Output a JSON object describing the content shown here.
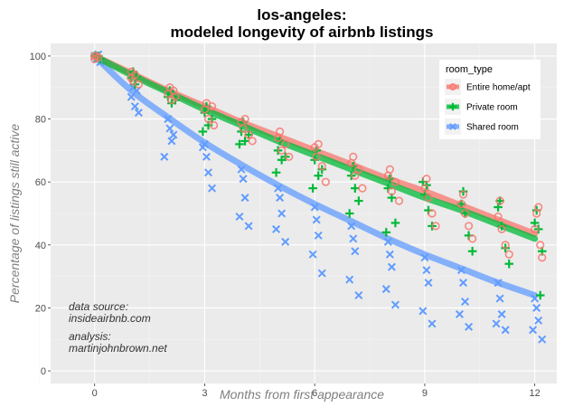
{
  "chart_data": {
    "type": "scatter",
    "title_line1": "los-angeles:",
    "title_line2": "modeled longevity of airbnb listings",
    "xlabel": "Months from first appearance",
    "ylabel": "Percentage of listings still active",
    "xlim": [
      -1.2,
      12.6
    ],
    "ylim": [
      -4,
      104
    ],
    "x_ticks": [
      0,
      3,
      6,
      9,
      12
    ],
    "y_ticks": [
      0,
      20,
      40,
      60,
      80,
      100
    ],
    "grid": true,
    "legend_position": "top-right",
    "legend_title": "room_type",
    "annotations": [
      {
        "line1": "data source:",
        "line2": "insideairbnb.com"
      },
      {
        "line1": "analysis:",
        "line2": "martinjohnbrown.net"
      }
    ],
    "series": [
      {
        "name": "Entire home/apt",
        "color": "#F8766D",
        "marker": "circle",
        "curve": {
          "x": [
            0,
            1,
            2,
            3,
            4,
            5,
            6,
            7,
            8,
            9,
            10,
            11,
            12
          ],
          "y": [
            100,
            94.5,
            89,
            84,
            79,
            74.5,
            70,
            65.5,
            61,
            57,
            52.5,
            48,
            43.5
          ]
        },
        "points": [
          [
            0,
            100
          ],
          [
            0,
            99
          ],
          [
            0.05,
            100
          ],
          [
            0.1,
            99.5
          ],
          [
            1,
            93
          ],
          [
            1,
            95
          ],
          [
            1.05,
            92
          ],
          [
            1.1,
            94
          ],
          [
            1.2,
            91
          ],
          [
            2,
            88
          ],
          [
            2.05,
            90
          ],
          [
            2.1,
            86
          ],
          [
            2.15,
            89
          ],
          [
            2.2,
            87
          ],
          [
            3,
            83
          ],
          [
            3.05,
            85
          ],
          [
            3.1,
            80
          ],
          [
            3.2,
            84
          ],
          [
            3.25,
            78
          ],
          [
            4,
            79
          ],
          [
            4.05,
            77
          ],
          [
            4.1,
            80
          ],
          [
            4.2,
            75
          ],
          [
            4.3,
            73
          ],
          [
            5,
            74
          ],
          [
            5.05,
            76
          ],
          [
            5.1,
            70
          ],
          [
            5.2,
            72
          ],
          [
            5.3,
            68
          ],
          [
            6,
            71
          ],
          [
            6.05,
            68
          ],
          [
            6.1,
            72
          ],
          [
            6.2,
            65
          ],
          [
            6.3,
            60
          ],
          [
            7,
            66
          ],
          [
            7.05,
            68
          ],
          [
            7.1,
            62
          ],
          [
            7.2,
            64
          ],
          [
            7.3,
            58
          ],
          [
            8,
            62
          ],
          [
            8.05,
            64
          ],
          [
            8.1,
            57
          ],
          [
            8.2,
            60
          ],
          [
            8.3,
            54
          ],
          [
            9,
            58
          ],
          [
            9.05,
            61
          ],
          [
            9.1,
            55
          ],
          [
            9.2,
            50
          ],
          [
            9.3,
            46
          ],
          [
            10,
            53
          ],
          [
            10.05,
            56
          ],
          [
            10.1,
            50
          ],
          [
            10.2,
            46
          ],
          [
            10.3,
            42
          ],
          [
            11,
            49
          ],
          [
            11.05,
            54
          ],
          [
            11.1,
            45
          ],
          [
            11.2,
            40
          ],
          [
            11.3,
            37
          ],
          [
            12,
            45
          ],
          [
            12.05,
            50
          ],
          [
            12.1,
            52
          ],
          [
            12.15,
            40
          ],
          [
            12.2,
            36
          ]
        ]
      },
      {
        "name": "Private room",
        "color": "#00BA38",
        "marker": "plus",
        "curve": {
          "x": [
            0,
            1,
            2,
            3,
            4,
            5,
            6,
            7,
            8,
            9,
            10,
            11,
            12
          ],
          "y": [
            100,
            94,
            88.5,
            83,
            78,
            73,
            68.5,
            64,
            59.5,
            55,
            51,
            46.5,
            42
          ]
        },
        "points": [
          [
            0,
            100
          ],
          [
            0.05,
            99.5
          ],
          [
            0.1,
            100
          ],
          [
            0.15,
            99
          ],
          [
            1,
            93
          ],
          [
            1.05,
            95
          ],
          [
            1.1,
            91
          ],
          [
            1.15,
            93.5
          ],
          [
            2,
            87
          ],
          [
            2.05,
            89
          ],
          [
            2.1,
            85
          ],
          [
            2.2,
            86
          ],
          [
            3,
            82
          ],
          [
            3.05,
            84
          ],
          [
            3.1,
            78
          ],
          [
            3.2,
            80
          ],
          [
            2.95,
            76
          ],
          [
            4,
            76
          ],
          [
            4.05,
            79
          ],
          [
            4.1,
            73
          ],
          [
            4.2,
            75
          ],
          [
            3.95,
            72
          ],
          [
            5,
            70
          ],
          [
            5.05,
            73
          ],
          [
            5.1,
            67
          ],
          [
            5.2,
            68
          ],
          [
            4.95,
            63
          ],
          [
            6,
            67
          ],
          [
            6.05,
            70
          ],
          [
            6.1,
            62
          ],
          [
            6.2,
            64
          ],
          [
            5.95,
            58
          ],
          [
            7,
            62
          ],
          [
            7.05,
            65
          ],
          [
            7.1,
            58
          ],
          [
            7.2,
            54
          ],
          [
            6.95,
            50
          ],
          [
            8,
            58
          ],
          [
            8.05,
            61
          ],
          [
            8.1,
            55
          ],
          [
            8.2,
            47
          ],
          [
            7.95,
            44
          ],
          [
            9,
            56
          ],
          [
            9.05,
            59
          ],
          [
            9.1,
            51
          ],
          [
            9.2,
            46
          ],
          [
            8.95,
            60
          ],
          [
            10,
            53
          ],
          [
            10.05,
            57
          ],
          [
            10.1,
            50
          ],
          [
            10.2,
            43
          ],
          [
            10.3,
            38
          ],
          [
            11,
            52
          ],
          [
            11.05,
            54
          ],
          [
            11.1,
            46
          ],
          [
            11.2,
            39
          ],
          [
            11.3,
            34
          ],
          [
            12,
            47
          ],
          [
            12.05,
            51
          ],
          [
            12.1,
            45
          ],
          [
            12.2,
            38
          ],
          [
            12.15,
            24
          ]
        ]
      },
      {
        "name": "Shared room",
        "color": "#619CFF",
        "marker": "cross",
        "curve": {
          "x": [
            0,
            1,
            2,
            3,
            4,
            5,
            6,
            7,
            8,
            9,
            10,
            11,
            12
          ],
          "y": [
            100,
            89,
            80.5,
            72.5,
            65.5,
            59,
            53,
            47.5,
            42,
            37,
            32.5,
            28,
            24
          ]
        },
        "points": [
          [
            0,
            100
          ],
          [
            0.05,
            99
          ],
          [
            0.1,
            100.5
          ],
          [
            0.15,
            98
          ],
          [
            1,
            87
          ],
          [
            1.05,
            90
          ],
          [
            1.1,
            84
          ],
          [
            1.15,
            89
          ],
          [
            1.2,
            82
          ],
          [
            2,
            80
          ],
          [
            2.05,
            77
          ],
          [
            2.1,
            73
          ],
          [
            1.9,
            68
          ],
          [
            2.15,
            75
          ],
          [
            3,
            72
          ],
          [
            3.05,
            68
          ],
          [
            3.1,
            63
          ],
          [
            3.2,
            58
          ],
          [
            2.95,
            71
          ],
          [
            4,
            64
          ],
          [
            4.05,
            61
          ],
          [
            4.1,
            55
          ],
          [
            3.95,
            49
          ],
          [
            4.2,
            46
          ],
          [
            5,
            58
          ],
          [
            5.05,
            55
          ],
          [
            5.1,
            50
          ],
          [
            4.95,
            45
          ],
          [
            5.2,
            41
          ],
          [
            6,
            52
          ],
          [
            6.05,
            48
          ],
          [
            6.1,
            43
          ],
          [
            5.95,
            37
          ],
          [
            6.2,
            31
          ],
          [
            7,
            46
          ],
          [
            7.05,
            42
          ],
          [
            7.1,
            38
          ],
          [
            6.95,
            29
          ],
          [
            7.2,
            24
          ],
          [
            8,
            41
          ],
          [
            8.05,
            37
          ],
          [
            8.1,
            33
          ],
          [
            7.95,
            26
          ],
          [
            8.2,
            21
          ],
          [
            9,
            36
          ],
          [
            9.05,
            32
          ],
          [
            9.1,
            28
          ],
          [
            8.95,
            19
          ],
          [
            9.2,
            15
          ],
          [
            10,
            32
          ],
          [
            10.05,
            28
          ],
          [
            10.1,
            22
          ],
          [
            9.95,
            18
          ],
          [
            10.2,
            14
          ],
          [
            11,
            28
          ],
          [
            11.05,
            23
          ],
          [
            11.1,
            18
          ],
          [
            10.95,
            15
          ],
          [
            11.2,
            13
          ],
          [
            12,
            23
          ],
          [
            12.05,
            20
          ],
          [
            12.1,
            16
          ],
          [
            11.95,
            13
          ],
          [
            12.2,
            10
          ]
        ]
      }
    ]
  }
}
